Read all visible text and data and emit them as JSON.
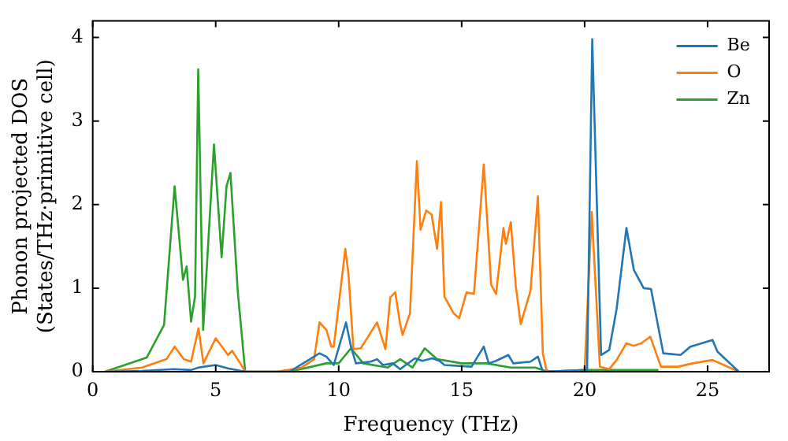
{
  "chart_data": {
    "type": "line",
    "xlabel": "Frequency (THz)",
    "ylabel": "Phonon projected DOS\n(States/THz·primitive cell)",
    "xlim": [
      0,
      27.5
    ],
    "ylim": [
      0,
      4.2
    ],
    "xticks": [
      0,
      5,
      10,
      15,
      20,
      25
    ],
    "yticks": [
      0,
      1,
      2,
      3,
      4
    ],
    "grid": false,
    "legend": "top right",
    "marker": "none",
    "line_style": "solid",
    "series": [
      {
        "name": "Be",
        "color": "#1f77b4",
        "x": [
          0.5,
          2,
          3.3,
          4,
          4.3,
          5,
          5.5,
          6.2,
          8,
          9.22,
          9.5,
          9.8,
          10.3,
          10.5,
          10.7,
          11.3,
          11.56,
          11.8,
          12.2,
          12.5,
          13.1,
          13.4,
          13.8,
          14.1,
          14.3,
          15.4,
          15.9,
          16.1,
          16.4,
          16.9,
          17.1,
          17.8,
          18.1,
          18.3,
          20.1,
          20.31,
          20.67,
          21,
          21.3,
          21.7,
          22,
          22.4,
          22.7,
          23.2,
          23.9,
          24.3,
          25.2,
          25.4,
          26.27
        ],
        "values": [
          0,
          0.01,
          0.03,
          0.02,
          0.05,
          0.08,
          0.04,
          0,
          0,
          0.22,
          0.18,
          0.08,
          0.59,
          0.3,
          0.1,
          0.12,
          0.15,
          0.08,
          0.1,
          0.03,
          0.16,
          0.13,
          0.16,
          0.13,
          0.08,
          0.06,
          0.3,
          0.1,
          0.13,
          0.2,
          0.1,
          0.12,
          0.18,
          0,
          0.02,
          3.98,
          0.2,
          0.26,
          0.75,
          1.72,
          1.22,
          1,
          0.99,
          0.22,
          0.2,
          0.3,
          0.38,
          0.24,
          0
        ]
      },
      {
        "name": "O",
        "color": "#ff7f0e",
        "x": [
          0.5,
          2,
          3,
          3.33,
          3.7,
          4,
          4.3,
          4.5,
          5,
          5.5,
          5.67,
          6,
          6.2,
          7.5,
          8.5,
          9,
          9.22,
          9.5,
          9.7,
          9.8,
          10.27,
          10.4,
          10.6,
          10.9,
          11.56,
          11.9,
          12.1,
          12.3,
          12.5,
          12.6,
          12.9,
          13.18,
          13.33,
          13.56,
          13.78,
          14,
          14.16,
          14.3,
          14.67,
          14.9,
          15.2,
          15.5,
          15.9,
          16.2,
          16.4,
          16.7,
          16.8,
          17,
          17.2,
          17.4,
          17.8,
          18.1,
          18.3,
          18.45,
          18.6,
          20,
          20.29,
          20.62,
          21,
          21.3,
          21.7,
          22,
          22.3,
          22.67,
          23.1,
          23.8,
          24.4,
          25.2,
          26.27
        ],
        "values": [
          0,
          0.05,
          0.15,
          0.3,
          0.15,
          0.12,
          0.52,
          0.1,
          0.4,
          0.2,
          0.25,
          0.1,
          0,
          0,
          0.05,
          0.15,
          0.59,
          0.5,
          0.3,
          0.3,
          1.47,
          1.16,
          0.27,
          0.28,
          0.59,
          0.27,
          0.89,
          0.95,
          0.57,
          0.44,
          0.7,
          2.52,
          1.7,
          1.93,
          1.88,
          1.47,
          2.03,
          0.9,
          0.7,
          0.64,
          0.95,
          0.93,
          2.48,
          1.04,
          0.93,
          1.72,
          1.53,
          1.79,
          1.03,
          0.57,
          0.97,
          2.1,
          0.22,
          0.02,
          0,
          0.02,
          1.91,
          0.06,
          0.03,
          0.14,
          0.34,
          0.31,
          0.34,
          0.42,
          0.06,
          0.06,
          0.1,
          0.14,
          0
        ]
      },
      {
        "name": "Zn",
        "color": "#2ca02c",
        "x": [
          0.5,
          2.2,
          2.9,
          3.33,
          3.67,
          3.82,
          4,
          4.16,
          4.29,
          4.49,
          4.93,
          5.24,
          5.44,
          5.6,
          5.9,
          6.2,
          8,
          9.5,
          10,
          10.5,
          11,
          12,
          12.5,
          13,
          13.5,
          14,
          15,
          16,
          17,
          18,
          18.5,
          20,
          23
        ],
        "values": [
          0,
          0.17,
          0.56,
          2.22,
          1.1,
          1.26,
          0.6,
          0.9,
          3.62,
          0.5,
          2.72,
          1.37,
          2.22,
          2.38,
          0.95,
          0,
          0,
          0.1,
          0.1,
          0.28,
          0.1,
          0.05,
          0.15,
          0.05,
          0.28,
          0.15,
          0.1,
          0.1,
          0.05,
          0.05,
          0,
          0.02,
          0.02
        ]
      }
    ]
  }
}
